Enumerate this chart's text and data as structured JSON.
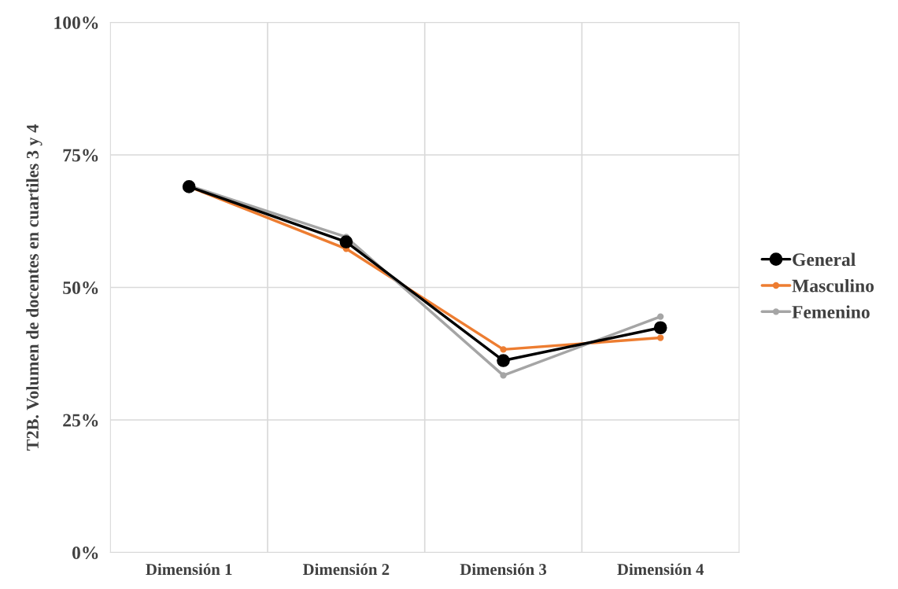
{
  "chart_data": {
    "type": "line",
    "ylabel": "T2B. Volumen de docentes en cuartiles 3 y 4",
    "categories": [
      "Dimensión 1",
      "Dimensión 2",
      "Dimensión 3",
      "Dimensión 4"
    ],
    "series": [
      {
        "name": "General",
        "color": "#000000",
        "values": [
          69,
          58.6,
          36.2,
          42.4
        ],
        "marker": "circle"
      },
      {
        "name": "Masculino",
        "color": "#ed7d31",
        "values": [
          69,
          57.3,
          38.3,
          40.5
        ],
        "marker": "circle"
      },
      {
        "name": "Femenino",
        "color": "#a5a5a5",
        "values": [
          69.2,
          59.5,
          33.4,
          44.5
        ],
        "marker": "circle"
      }
    ],
    "ylim": [
      0,
      100
    ],
    "yticks": [
      {
        "value": 0,
        "label": "0%"
      },
      {
        "value": 25,
        "label": "25%"
      },
      {
        "value": 50,
        "label": "50%"
      },
      {
        "value": 75,
        "label": "75%"
      },
      {
        "value": 100,
        "label": "100%"
      }
    ],
    "grid": true,
    "legend": "right"
  }
}
